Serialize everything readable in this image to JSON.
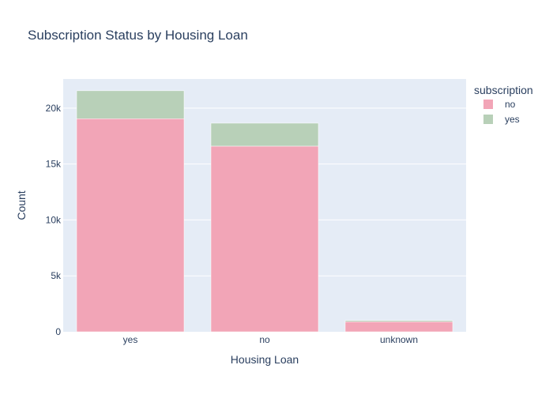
{
  "chart_data": {
    "type": "bar",
    "barmode": "stack",
    "title": "Subscription Status by Housing Loan",
    "xlabel": "Housing Loan",
    "ylabel": "Count",
    "categories": [
      "yes",
      "no",
      "unknown"
    ],
    "ylim": [
      0,
      22600
    ],
    "yticks": [
      0,
      5000,
      10000,
      15000,
      20000
    ],
    "ytick_labels": [
      "0",
      "5k",
      "10k",
      "15k",
      "20k"
    ],
    "grid": true,
    "legend": {
      "title": "subscription",
      "position": "top-right"
    },
    "series": [
      {
        "name": "no",
        "color": "#f2a5b7",
        "values": [
          19050,
          16600,
          900
        ]
      },
      {
        "name": "yes",
        "color": "#b8d0b8",
        "values": [
          2500,
          2050,
          110
        ]
      }
    ],
    "background_color": "#e5ecf6"
  }
}
